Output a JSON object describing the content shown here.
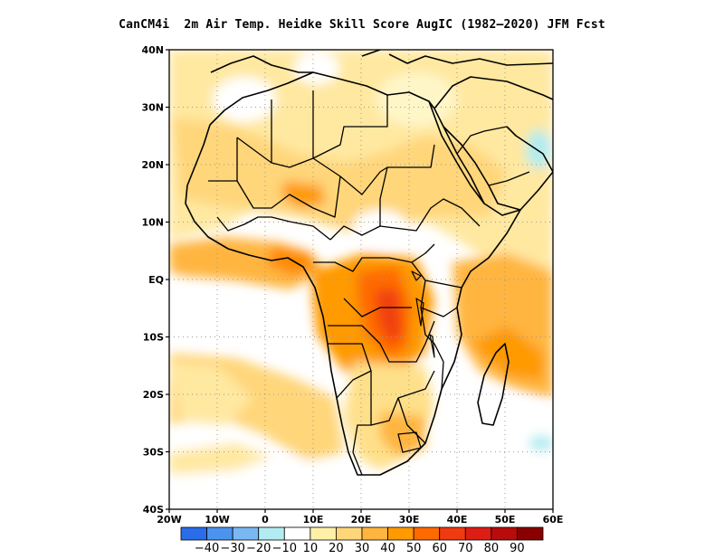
{
  "title": "CanCM4i  2m Air Temp. Heidke Skill Score AugIC (1982–2020) JFM Fcst",
  "map": {
    "lon_range": [
      -20,
      60
    ],
    "lat_range": [
      -40,
      40
    ],
    "gridlines": "dotted",
    "y_ticks": [
      {
        "lat": 40,
        "label": "40N"
      },
      {
        "lat": 30,
        "label": "30N"
      },
      {
        "lat": 20,
        "label": "20N"
      },
      {
        "lat": 10,
        "label": "10N"
      },
      {
        "lat": 0,
        "label": "EQ"
      },
      {
        "lat": -10,
        "label": "10S"
      },
      {
        "lat": -20,
        "label": "20S"
      },
      {
        "lat": -30,
        "label": "30S"
      },
      {
        "lat": -40,
        "label": "40S"
      }
    ],
    "x_ticks": [
      {
        "lon": -20,
        "label": "20W"
      },
      {
        "lon": -10,
        "label": "10W"
      },
      {
        "lon": 0,
        "label": "0"
      },
      {
        "lon": 10,
        "label": "10E"
      },
      {
        "lon": 20,
        "label": "20E"
      },
      {
        "lon": 30,
        "label": "30E"
      },
      {
        "lon": 40,
        "label": "40E"
      },
      {
        "lon": 50,
        "label": "50E"
      },
      {
        "lon": 60,
        "label": "60E"
      }
    ]
  },
  "colorbar": {
    "colors": [
      "#2a6de8",
      "#4c93ee",
      "#7ab8f4",
      "#b2ecf0",
      "#ffffff",
      "#fff0a8",
      "#ffd67a",
      "#ffb540",
      "#ff9a00",
      "#ff6a00",
      "#f03a10",
      "#dc1e14",
      "#b80c0c",
      "#8a0000"
    ],
    "labels": [
      "−40",
      "−30",
      "−20",
      "−10",
      "10",
      "20",
      "30",
      "40",
      "50",
      "60",
      "70",
      "80",
      "90"
    ]
  },
  "regions": [
    {
      "name": "sahara-band",
      "value": 20,
      "color": "#ffe08a"
    },
    {
      "name": "west-africa-coast",
      "value": 40,
      "color": "#ffb540"
    },
    {
      "name": "congo-basin",
      "value": 50,
      "color": "#ff8a00"
    },
    {
      "name": "congo-core",
      "value": 60,
      "color": "#ff6a00"
    },
    {
      "name": "indian-ocean",
      "value": 40,
      "color": "#ffb540"
    },
    {
      "name": "south-atlantic",
      "value": 20,
      "color": "#ffd67a"
    },
    {
      "name": "arabian-sea-negative",
      "value": -10,
      "color": "#b2ecf0"
    }
  ]
}
